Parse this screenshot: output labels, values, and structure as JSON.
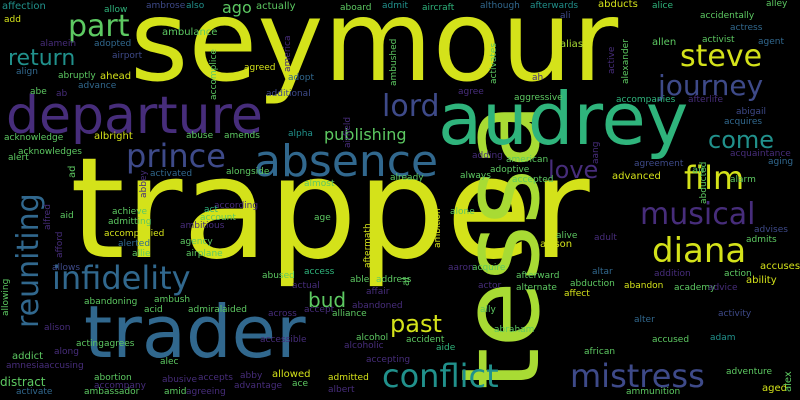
{
  "palette": {
    "background": "#000000",
    "yellow": "#d4e21a",
    "lime": "#a8db34",
    "green": "#5dc962",
    "teal": "#2fb47c",
    "cyan": "#21918c",
    "blue": "#31688e",
    "indigo": "#3e4a89",
    "purple": "#472d7b",
    "violet": "#440154"
  },
  "words": [
    {
      "text": "seymour",
      "color": "#d4e21a"
    },
    {
      "text": "trapper",
      "color": "#d4e21a"
    },
    {
      "text": "tessa",
      "color": "#a8db34"
    },
    {
      "text": "audrey",
      "color": "#2fb47c"
    },
    {
      "text": "departure",
      "color": "#472d7b"
    },
    {
      "text": "trader",
      "color": "#31688e"
    },
    {
      "text": "absence",
      "color": "#31688e"
    },
    {
      "text": "conflict",
      "color": "#21918c"
    },
    {
      "text": "mistress",
      "color": "#3e4a89"
    },
    {
      "text": "infidelity",
      "color": "#31688e"
    },
    {
      "text": "reuniting",
      "color": "#31688e"
    },
    {
      "text": "prince",
      "color": "#3e4a89"
    },
    {
      "text": "musical",
      "color": "#472d7b"
    },
    {
      "text": "diana",
      "color": "#d4e21a"
    },
    {
      "text": "film",
      "color": "#d4e21a"
    },
    {
      "text": "steve",
      "color": "#d4e21a"
    },
    {
      "text": "journey",
      "color": "#3e4a89"
    },
    {
      "text": "part",
      "color": "#5dc962"
    },
    {
      "text": "return",
      "color": "#21918c"
    },
    {
      "text": "lord",
      "color": "#3e4a89"
    },
    {
      "text": "love",
      "color": "#472d7b"
    },
    {
      "text": "come",
      "color": "#21918c"
    },
    {
      "text": "past",
      "color": "#d4e21a"
    },
    {
      "text": "bud",
      "color": "#5dc962"
    },
    {
      "text": "publishing",
      "color": "#5dc962"
    },
    {
      "text": "affection",
      "color": "#21918c"
    },
    {
      "text": "allow",
      "color": "#2fb47c"
    },
    {
      "text": "ambrose",
      "color": "#3e4a89"
    },
    {
      "text": "also",
      "color": "#21918c"
    },
    {
      "text": "ago",
      "color": "#5dc962"
    },
    {
      "text": "actually",
      "color": "#5dc962"
    },
    {
      "text": "aboard",
      "color": "#5dc962"
    },
    {
      "text": "admit",
      "color": "#21918c"
    },
    {
      "text": "aircraft",
      "color": "#2fb47c"
    },
    {
      "text": "although",
      "color": "#31688e"
    },
    {
      "text": "afterwards",
      "color": "#21918c"
    },
    {
      "text": "abducts",
      "color": "#d4e21a"
    },
    {
      "text": "alice",
      "color": "#2fb47c"
    },
    {
      "text": "alley",
      "color": "#5dc962"
    },
    {
      "text": "accidentally",
      "color": "#5dc962"
    },
    {
      "text": "actress",
      "color": "#31688e"
    },
    {
      "text": "add",
      "color": "#d4e21a"
    },
    {
      "text": "ali",
      "color": "#3e4a89"
    },
    {
      "text": "ambulance",
      "color": "#5dc962"
    },
    {
      "text": "adopted",
      "color": "#31688e"
    },
    {
      "text": "airport",
      "color": "#3e4a89"
    },
    {
      "text": "alias",
      "color": "#a8db34"
    },
    {
      "text": "allen",
      "color": "#5dc962"
    },
    {
      "text": "activist",
      "color": "#5dc962"
    },
    {
      "text": "agent",
      "color": "#31688e"
    },
    {
      "text": "align",
      "color": "#31688e"
    },
    {
      "text": "abruptly",
      "color": "#5dc962"
    },
    {
      "text": "ahead",
      "color": "#d4e21a"
    },
    {
      "text": "agreed",
      "color": "#d4e21a"
    },
    {
      "text": "adopt",
      "color": "#31688e"
    },
    {
      "text": "abe",
      "color": "#5dc962"
    },
    {
      "text": "advance",
      "color": "#31688e"
    },
    {
      "text": "additional",
      "color": "#3e4a89"
    },
    {
      "text": "agree",
      "color": "#472d7b"
    },
    {
      "text": "aggressive",
      "color": "#5dc962"
    },
    {
      "text": "accompanies",
      "color": "#2fb47c"
    },
    {
      "text": "afterlife",
      "color": "#472d7b"
    },
    {
      "text": "abigail",
      "color": "#3e4a89"
    },
    {
      "text": "acquires",
      "color": "#31688e"
    },
    {
      "text": "acknowledge",
      "color": "#5dc962"
    },
    {
      "text": "albright",
      "color": "#d4e21a"
    },
    {
      "text": "abuse",
      "color": "#5dc962"
    },
    {
      "text": "amends",
      "color": "#5dc962"
    },
    {
      "text": "alpha",
      "color": "#21918c"
    },
    {
      "text": "acknowledges",
      "color": "#5dc962"
    },
    {
      "text": "adding",
      "color": "#472d7b"
    },
    {
      "text": "american",
      "color": "#5dc962"
    },
    {
      "text": "agreement",
      "color": "#3e4a89"
    },
    {
      "text": "acquaintance",
      "color": "#472d7b"
    },
    {
      "text": "aging",
      "color": "#31688e"
    },
    {
      "text": "adoptive",
      "color": "#5dc962"
    },
    {
      "text": "activated",
      "color": "#31688e"
    },
    {
      "text": "alongside",
      "color": "#5dc962"
    },
    {
      "text": "already",
      "color": "#5dc962"
    },
    {
      "text": "always",
      "color": "#5dc962"
    },
    {
      "text": "accepted",
      "color": "#5dc962"
    },
    {
      "text": "advanced",
      "color": "#d4e21a"
    },
    {
      "text": "alarm",
      "color": "#5dc962"
    },
    {
      "text": "almost",
      "color": "#5dc962"
    },
    {
      "text": "achieve",
      "color": "#5dc962"
    },
    {
      "text": "admitting",
      "color": "#5dc962"
    },
    {
      "text": "accompanied",
      "color": "#d4e21a"
    },
    {
      "text": "according",
      "color": "#472d7b"
    },
    {
      "text": "ambitious",
      "color": "#472d7b"
    },
    {
      "text": "act",
      "color": "#2fb47c"
    },
    {
      "text": "account",
      "color": "#5dc962"
    },
    {
      "text": "age",
      "color": "#5dc962"
    },
    {
      "text": "alone",
      "color": "#5dc962"
    },
    {
      "text": "alerted",
      "color": "#31688e"
    },
    {
      "text": "agency",
      "color": "#5dc962"
    },
    {
      "text": "airplane",
      "color": "#5dc962"
    },
    {
      "text": "allie",
      "color": "#5dc962"
    },
    {
      "text": "alive",
      "color": "#5dc962"
    },
    {
      "text": "allison",
      "color": "#d4e21a"
    },
    {
      "text": "adult",
      "color": "#472d7b"
    },
    {
      "text": "admits",
      "color": "#5dc962"
    },
    {
      "text": "advises",
      "color": "#3e4a89"
    },
    {
      "text": "aid",
      "color": "#5dc962"
    },
    {
      "text": "abused",
      "color": "#5dc962"
    },
    {
      "text": "access",
      "color": "#2fb47c"
    },
    {
      "text": "able",
      "color": "#5dc962"
    },
    {
      "text": "address",
      "color": "#5dc962"
    },
    {
      "text": "acquire",
      "color": "#5dc962"
    },
    {
      "text": "aaron",
      "color": "#472d7b"
    },
    {
      "text": "addition",
      "color": "#472d7b"
    },
    {
      "text": "action",
      "color": "#5dc962"
    },
    {
      "text": "accuses",
      "color": "#d4e21a"
    },
    {
      "text": "allows",
      "color": "#3e4a89"
    },
    {
      "text": "actual",
      "color": "#472d7b"
    },
    {
      "text": "affair",
      "color": "#472d7b"
    },
    {
      "text": "afterward",
      "color": "#5dc962"
    },
    {
      "text": "altar",
      "color": "#31688e"
    },
    {
      "text": "abandon",
      "color": "#d4e21a"
    },
    {
      "text": "academy",
      "color": "#5dc962"
    },
    {
      "text": "advice",
      "color": "#472d7b"
    },
    {
      "text": "ability",
      "color": "#d4e21a"
    },
    {
      "text": "abandoning",
      "color": "#5dc962"
    },
    {
      "text": "ambush",
      "color": "#5dc962"
    },
    {
      "text": "admiral",
      "color": "#5dc962"
    },
    {
      "text": "aided",
      "color": "#5dc962"
    },
    {
      "text": "across",
      "color": "#472d7b"
    },
    {
      "text": "accept",
      "color": "#472d7b"
    },
    {
      "text": "alliance",
      "color": "#5dc962"
    },
    {
      "text": "abandoned",
      "color": "#472d7b"
    },
    {
      "text": "actor",
      "color": "#472d7b"
    },
    {
      "text": "alternate",
      "color": "#5dc962"
    },
    {
      "text": "abduction",
      "color": "#5dc962"
    },
    {
      "text": "affect",
      "color": "#d4e21a"
    },
    {
      "text": "acid",
      "color": "#5dc962"
    },
    {
      "text": "alter",
      "color": "#31688e"
    },
    {
      "text": "activity",
      "color": "#3e4a89"
    },
    {
      "text": "alison",
      "color": "#472d7b"
    },
    {
      "text": "ally",
      "color": "#5dc962"
    },
    {
      "text": "abraham",
      "color": "#5dc962"
    },
    {
      "text": "alcohol",
      "color": "#5dc962"
    },
    {
      "text": "alcoholic",
      "color": "#472d7b"
    },
    {
      "text": "accident",
      "color": "#5dc962"
    },
    {
      "text": "aide",
      "color": "#2fb47c"
    },
    {
      "text": "accused",
      "color": "#5dc962"
    },
    {
      "text": "adam",
      "color": "#21918c"
    },
    {
      "text": "addict",
      "color": "#5dc962"
    },
    {
      "text": "acting",
      "color": "#5dc962"
    },
    {
      "text": "agrees",
      "color": "#5dc962"
    },
    {
      "text": "along",
      "color": "#472d7b"
    },
    {
      "text": "alec",
      "color": "#5dc962"
    },
    {
      "text": "accessible",
      "color": "#472d7b"
    },
    {
      "text": "amnesia",
      "color": "#472d7b"
    },
    {
      "text": "accusing",
      "color": "#472d7b"
    },
    {
      "text": "accepting",
      "color": "#472d7b"
    },
    {
      "text": "african",
      "color": "#5dc962"
    },
    {
      "text": "abortion",
      "color": "#5dc962"
    },
    {
      "text": "accompany",
      "color": "#472d7b"
    },
    {
      "text": "abusive",
      "color": "#472d7b"
    },
    {
      "text": "accepts",
      "color": "#472d7b"
    },
    {
      "text": "abby",
      "color": "#472d7b"
    },
    {
      "text": "allowed",
      "color": "#d4e21a"
    },
    {
      "text": "admitted",
      "color": "#d4e21a"
    },
    {
      "text": "adventure",
      "color": "#5dc962"
    },
    {
      "text": "aged",
      "color": "#d4e21a"
    },
    {
      "text": "distract",
      "color": "#5dc962"
    },
    {
      "text": "ambassador",
      "color": "#5dc962"
    },
    {
      "text": "amid",
      "color": "#5dc962"
    },
    {
      "text": "agreeing",
      "color": "#472d7b"
    },
    {
      "text": "advantage",
      "color": "#472d7b"
    },
    {
      "text": "ace",
      "color": "#5dc962"
    },
    {
      "text": "albert",
      "color": "#472d7b"
    },
    {
      "text": "ammunition",
      "color": "#5dc962"
    },
    {
      "text": "alex",
      "color": "#5dc962"
    },
    {
      "text": "activate",
      "color": "#31688e"
    },
    {
      "text": "alamein",
      "color": "#472d7b"
    },
    {
      "text": "airfield",
      "color": "#472d7b"
    },
    {
      "text": "accomplice",
      "color": "#5dc962"
    },
    {
      "text": "america",
      "color": "#472d7b"
    },
    {
      "text": "ambushed",
      "color": "#5dc962"
    },
    {
      "text": "activates",
      "color": "#5dc962"
    },
    {
      "text": "alexander",
      "color": "#5dc962"
    },
    {
      "text": "active",
      "color": "#472d7b"
    },
    {
      "text": "abbey",
      "color": "#472d7b"
    },
    {
      "text": "alfred",
      "color": "#472d7b"
    },
    {
      "text": "afford",
      "color": "#472d7b"
    },
    {
      "text": "allowing",
      "color": "#5dc962"
    },
    {
      "text": "aftermath",
      "color": "#d4e21a"
    },
    {
      "text": "ambition",
      "color": "#d4e21a"
    },
    {
      "text": "abducted",
      "color": "#5dc962"
    },
    {
      "text": "air",
      "color": "#5dc962"
    },
    {
      "text": "ad",
      "color": "#5dc962"
    },
    {
      "text": "al",
      "color": "#5dc962"
    },
    {
      "text": "aang",
      "color": "#472d7b"
    },
    {
      "text": "ah",
      "color": "#472d7b"
    },
    {
      "text": "alert",
      "color": "#5dc962"
    },
    {
      "text": "ab",
      "color": "#472d7b"
    }
  ]
}
